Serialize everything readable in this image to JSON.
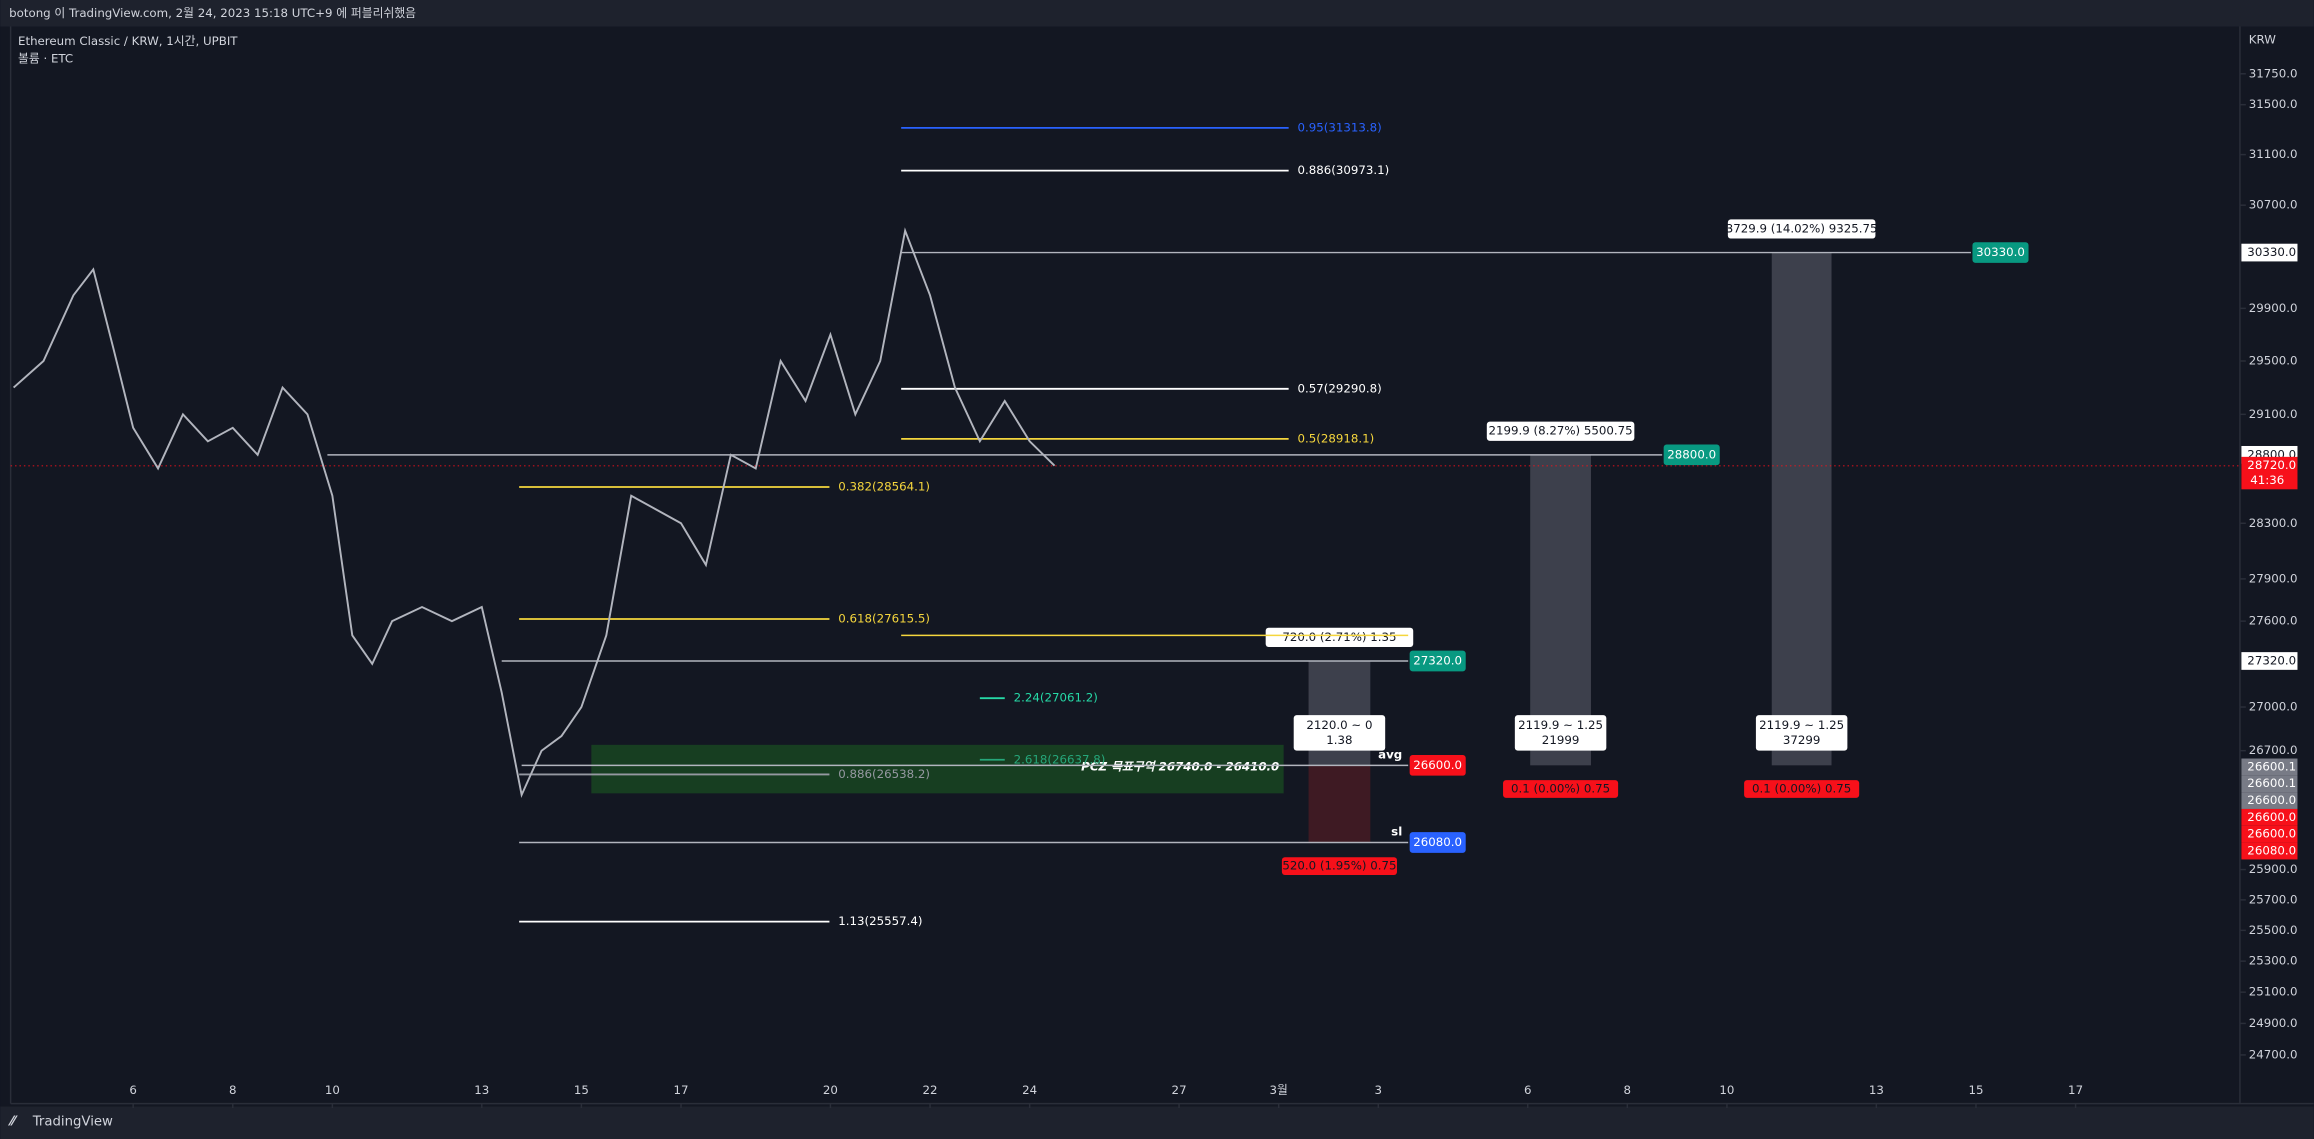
{
  "header": {
    "published": "botong 이 TradingView.com, 2월 24, 2023 15:18 UTC+9 에 퍼블리쉬했음",
    "footer": "TradingView"
  },
  "chart_data": {
    "type": "candlestick",
    "title": "Ethereum Classic / KRW, 1시간, UPBIT",
    "subtitle": "볼륨 · ETC",
    "y_unit": "KRW",
    "log_scale": true,
    "xlim": [
      3.54,
      48.3
    ],
    "ylim": [
      24422,
      32136
    ],
    "xticks": [
      6,
      8,
      10,
      13,
      15,
      17,
      20,
      22,
      24,
      27,
      {
        "value": 29,
        "label": "3월"
      },
      {
        "value": 31,
        "label": "3"
      },
      {
        "value": 34,
        "label": "6"
      },
      {
        "value": 36,
        "label": "8"
      },
      {
        "value": 38,
        "label": "10"
      },
      {
        "value": 41,
        "label": "13"
      },
      {
        "value": 43,
        "label": "15"
      },
      {
        "value": 45,
        "label": "17"
      }
    ],
    "yticks": [
      {
        "value": 31750,
        "label": "31750.0"
      },
      {
        "value": 31500,
        "label": "31500.0"
      },
      {
        "value": 31100,
        "label": "31100.0"
      },
      {
        "value": 30700,
        "label": "30700.0"
      },
      {
        "value": 29900,
        "label": "29900.0"
      },
      {
        "value": 29500,
        "label": "29500.0"
      },
      {
        "value": 29100,
        "label": "29100.0"
      },
      {
        "value": 28300,
        "label": "28300.0"
      },
      {
        "value": 27900,
        "label": "27900.0"
      },
      {
        "value": 27600,
        "label": "27600.0"
      },
      {
        "value": 27000,
        "label": "27000.0"
      },
      {
        "value": 26700,
        "label": "26700.0"
      },
      {
        "value": 25900,
        "label": "25900.0"
      },
      {
        "value": 25700,
        "label": "25700.0"
      },
      {
        "value": 25500,
        "label": "25500.0"
      },
      {
        "value": 25300,
        "label": "25300.0"
      },
      {
        "value": 25100,
        "label": "25100.0"
      },
      {
        "value": 24900,
        "label": "24900.0"
      },
      {
        "value": 24700,
        "label": "24700.0"
      }
    ],
    "series": [
      {
        "name": "ETC",
        "color": "#b2b5be",
        "x": [
          3.6,
          4.2,
          4.8,
          5.2,
          5.6,
          6.0,
          6.5,
          7.0,
          7.5,
          8.0,
          8.5,
          9.0,
          9.5,
          10.0,
          10.4,
          10.8,
          11.2,
          11.8,
          12.4,
          13.0,
          13.4,
          13.8,
          14.2,
          14.6,
          15.0,
          15.5,
          16.0,
          16.5,
          17.0,
          17.5,
          18.0,
          18.5,
          19.0,
          19.5,
          20.0,
          20.5,
          21.0,
          21.5,
          22.0,
          22.5,
          23.0,
          23.5,
          24.0,
          24.5
        ],
        "values": [
          29300,
          29500,
          30000,
          30200,
          29600,
          29000,
          28700,
          29100,
          28900,
          29000,
          28800,
          29300,
          29100,
          28500,
          27500,
          27300,
          27600,
          27700,
          27600,
          27700,
          27100,
          26400,
          26700,
          26800,
          27000,
          27500,
          28500,
          28400,
          28300,
          28000,
          28800,
          28700,
          29500,
          29200,
          29700,
          29100,
          29500,
          30500,
          30000,
          29300,
          28900,
          29200,
          28900,
          28720
        ]
      }
    ],
    "levels": [
      {
        "label": "0.95(31313.8)",
        "price": 31313.8,
        "from": 21.42,
        "to": 29.2,
        "color": "#2962ff"
      },
      {
        "label": "0.886(30973.1)",
        "price": 30973.1,
        "from": 21.42,
        "to": 29.2,
        "color": "#ffffff"
      },
      {
        "label": "0.57(29290.8)",
        "price": 29290.8,
        "from": 21.42,
        "to": 29.2,
        "color": "#ffffff"
      },
      {
        "label": "0.5(28918.1)",
        "price": 28918.1,
        "from": 21.42,
        "to": 29.2,
        "color": "#f5d63d"
      },
      {
        "label": "0.382(28564.1)",
        "price": 28564.1,
        "from": 13.75,
        "to": 19.98,
        "color": "#f5d63d"
      },
      {
        "label": "0.618(27615.5)",
        "price": 27615.5,
        "from": 13.75,
        "to": 19.98,
        "color": "#f5d63d"
      },
      {
        "label": "2.24(27061.2)",
        "price": 27061.2,
        "from": 23.0,
        "to": 23.5,
        "color": "#26d9a6"
      },
      {
        "label": "2.618(26637.8)",
        "price": 26637.8,
        "from": 23.0,
        "to": 23.5,
        "color": "#26a67a"
      },
      {
        "label": "0.886(26538.2)",
        "price": 26538.2,
        "from": 13.75,
        "to": 19.98,
        "color": "#9598a1"
      },
      {
        "label": "1.13(25557.4)",
        "price": 25557.4,
        "from": 13.75,
        "to": 19.98,
        "color": "#ffffff"
      }
    ],
    "lines": [
      {
        "price": 30330,
        "from": 21.42,
        "to": 42.9,
        "color": "#b2b5be",
        "tag": "30330.0",
        "tag_color": "#089981"
      },
      {
        "price": 28800,
        "from": 9.9,
        "to": 36.7,
        "color": "#b2b5be",
        "tag": "28800.0",
        "tag_color": "#089981"
      },
      {
        "price": 27500,
        "from": 21.42,
        "to": 31.6,
        "color": "#f5d63d"
      },
      {
        "price": 27320,
        "from": 13.4,
        "to": 31.6,
        "color": "#b2b5be",
        "tag": "27320.0",
        "tag_color": "#089981"
      },
      {
        "price": 26600,
        "from": 13.8,
        "to": 31.6,
        "color": "#b2b5be",
        "tag": "26600.0",
        "tag_color": "#f7101a",
        "note": "avg"
      },
      {
        "price": 26080,
        "from": 13.75,
        "to": 31.6,
        "color": "#b2b5be",
        "tag": "26080.0",
        "tag_color": "#2962ff",
        "note": "sl"
      }
    ],
    "zone": {
      "label": "PCZ 목표구역 26740.0 - 26410.0",
      "top": 26740,
      "bottom": 26410,
      "from": 15.2,
      "to": 29.1
    },
    "positions": [
      {
        "from": 29.6,
        "to": 30.84,
        "target": 27320,
        "entry": 26600,
        "stop": 26080,
        "target_label": "720.0 (2.71%) 1.35",
        "entry_label": [
          "2120.0 ~ 0",
          "1.38"
        ],
        "stop_label": "520.0 (1.95%) 0.75"
      },
      {
        "from": 34.05,
        "to": 35.27,
        "target": 28800,
        "entry": 26600,
        "stop": 26599.9,
        "target_label": "2199.9 (8.27%) 5500.75",
        "entry_label": [
          "2119.9 ~ 1.25",
          "21999"
        ],
        "stop_label": "0.1 (0.00%) 0.75"
      },
      {
        "from": 38.9,
        "to": 40.1,
        "target": 30330,
        "entry": 26600,
        "stop": 26599.9,
        "target_label": "3729.9 (14.02%) 9325.75",
        "entry_label": [
          "2119.9 ~ 1.25",
          "37299"
        ],
        "stop_label": "0.1 (0.00%) 0.75"
      }
    ],
    "last_price": {
      "value": 28720,
      "label": "28720.0",
      "countdown": "41:36"
    },
    "axis_tags": [
      {
        "value": 30330,
        "label": "30330.0"
      },
      {
        "value": 28800,
        "label": "28800.0"
      },
      {
        "value": 27320,
        "label": "27320.0"
      }
    ],
    "axis_stack": [
      {
        "value": 26600.1,
        "label": "26600.1",
        "color": "#787b86"
      },
      {
        "value": 26600.1,
        "label": "26600.1",
        "color": "#787b86"
      },
      {
        "value": 26600,
        "label": "26600.0",
        "color": "#787b86"
      },
      {
        "value": 26600,
        "label": "26600.0",
        "color": "#f7101a"
      },
      {
        "value": 26600,
        "label": "26600.0",
        "color": "#f7101a"
      },
      {
        "value": 26080,
        "label": "26080.0",
        "color": "#f7101a"
      }
    ]
  }
}
